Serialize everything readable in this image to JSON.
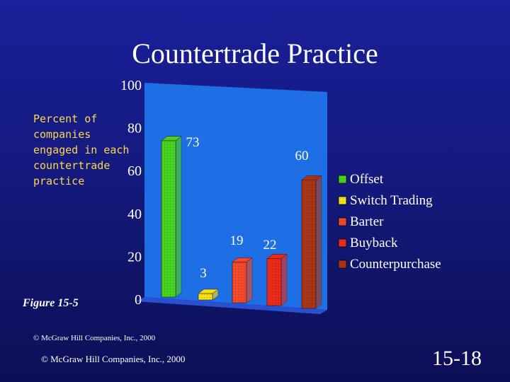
{
  "slide": {
    "title": "Countertrade Practice",
    "figure_label": "Figure 15-5",
    "copyright_small": "© McGraw Hill Companies, Inc., 2000",
    "copyright_main": "© McGraw Hill Companies, Inc., 2000",
    "slide_number": "15-18"
  },
  "chart_data": {
    "type": "bar",
    "title": "",
    "ylabel": "Percent of companies engaged in each countertrade practice",
    "ylabel_lines": [
      "Percent of",
      "companies",
      "engaged in each",
      "countertrade",
      "practice"
    ],
    "xlabel": "",
    "ylim": [
      0,
      100
    ],
    "yticks": [
      "0",
      "20",
      "40",
      "60",
      "80",
      "100"
    ],
    "categories": [
      "Offset",
      "Switch Trading",
      "Barter",
      "Buyback",
      "Counterpurchase"
    ],
    "values": [
      73,
      3,
      19,
      22,
      60
    ],
    "data_labels": [
      "73",
      "3",
      "19",
      "22",
      "60"
    ],
    "colors": [
      "#46d21e",
      "#f0e21a",
      "#f04a2a",
      "#ea2a1a",
      "#a8341a"
    ],
    "plot_background": "#1e6fe6",
    "legend_position": "right",
    "grid": false
  }
}
